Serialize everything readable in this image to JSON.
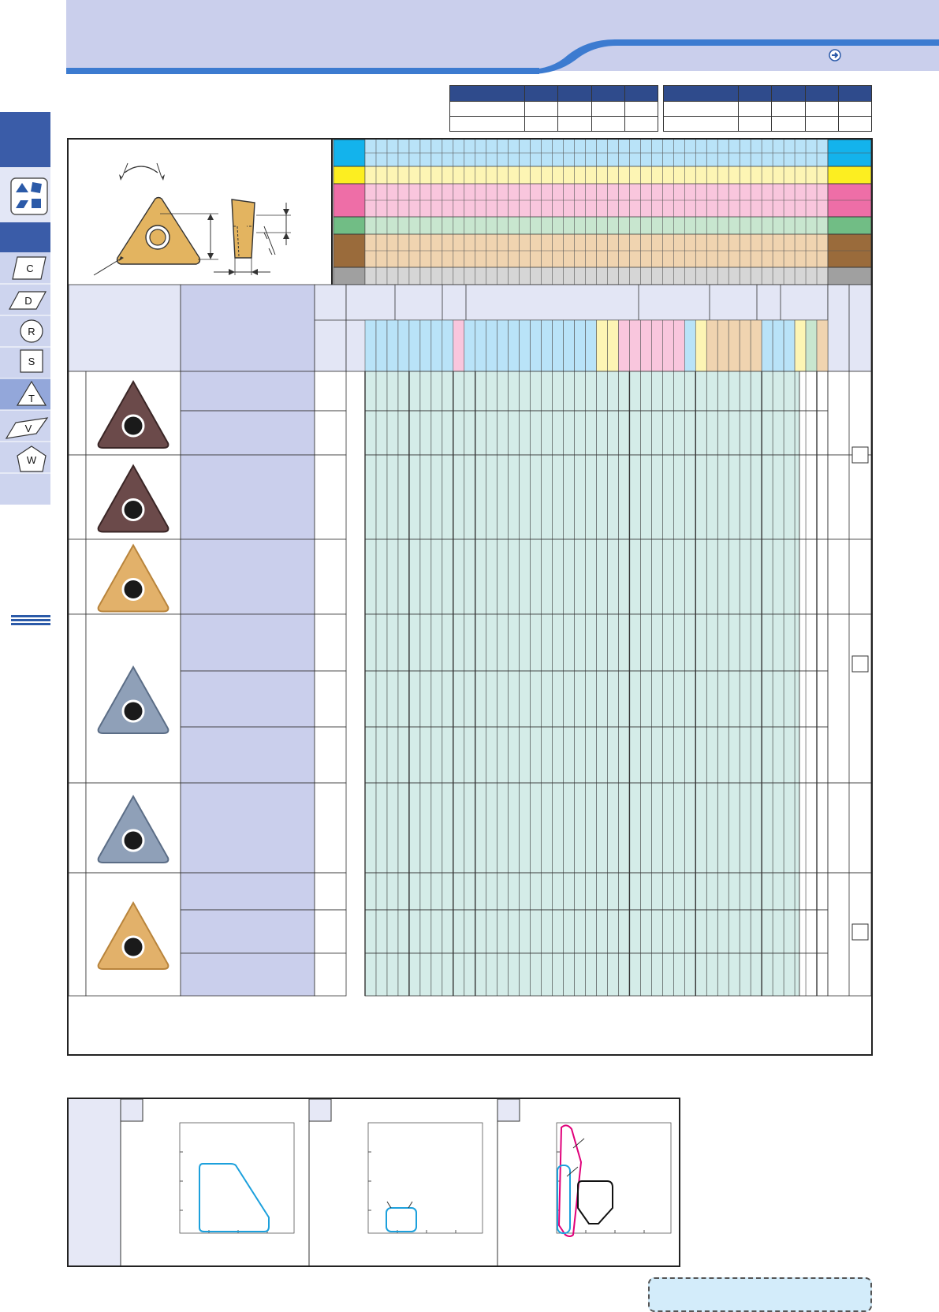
{
  "page": {
    "bg": "#ffffff"
  },
  "header": {
    "band_color": "#cacfec",
    "accent": "#3c7bd0"
  },
  "sidebar": {
    "icons": [
      {
        "name": "insert-shapes-icon",
        "label": ""
      },
      {
        "name": "c-shape-icon",
        "label": "C"
      },
      {
        "name": "d-shape-icon",
        "label": "D"
      },
      {
        "name": "r-shape-icon",
        "label": "R"
      },
      {
        "name": "s-shape-icon",
        "label": "S"
      },
      {
        "name": "t-shape-icon",
        "label": "T"
      },
      {
        "name": "v-shape-icon",
        "label": "V"
      },
      {
        "name": "w-shape-icon",
        "label": "W"
      }
    ]
  },
  "material_colors": {
    "P": "#13b3ec",
    "M": "#fcee21",
    "K": "#ee6ea7",
    "N": "#71bd85",
    "S": "#9a6b3b",
    "H": "#a0a0a0",
    "P_light": "#b9e3f8",
    "M_light": "#fdf5b4",
    "K_light": "#f9c6dd",
    "N_light": "#c8e6cf",
    "S_light": "#f0d4b0",
    "H_light": "#d6d6d6",
    "grid_cell": "#d4ece8"
  },
  "products": [
    {
      "name": "insert-row-1",
      "color": "brown",
      "sub_rows": 2
    },
    {
      "name": "insert-row-2",
      "color": "brown",
      "sub_rows": 1
    },
    {
      "name": "insert-row-3",
      "color": "gold",
      "sub_rows": 1
    },
    {
      "name": "insert-row-4",
      "color": "steel",
      "sub_rows": 3
    },
    {
      "name": "insert-row-5",
      "color": "steel",
      "sub_rows": 1
    },
    {
      "name": "insert-row-6",
      "color": "gold",
      "sub_rows": 3
    }
  ],
  "range_charts": [
    {
      "name": "range-chart-1",
      "color": "#1ca0dc"
    },
    {
      "name": "range-chart-2",
      "color": "#1ca0dc"
    },
    {
      "name": "range-chart-3",
      "color": "#e0007a"
    }
  ],
  "footer": {
    "note_bg": "#d3ecfa"
  }
}
